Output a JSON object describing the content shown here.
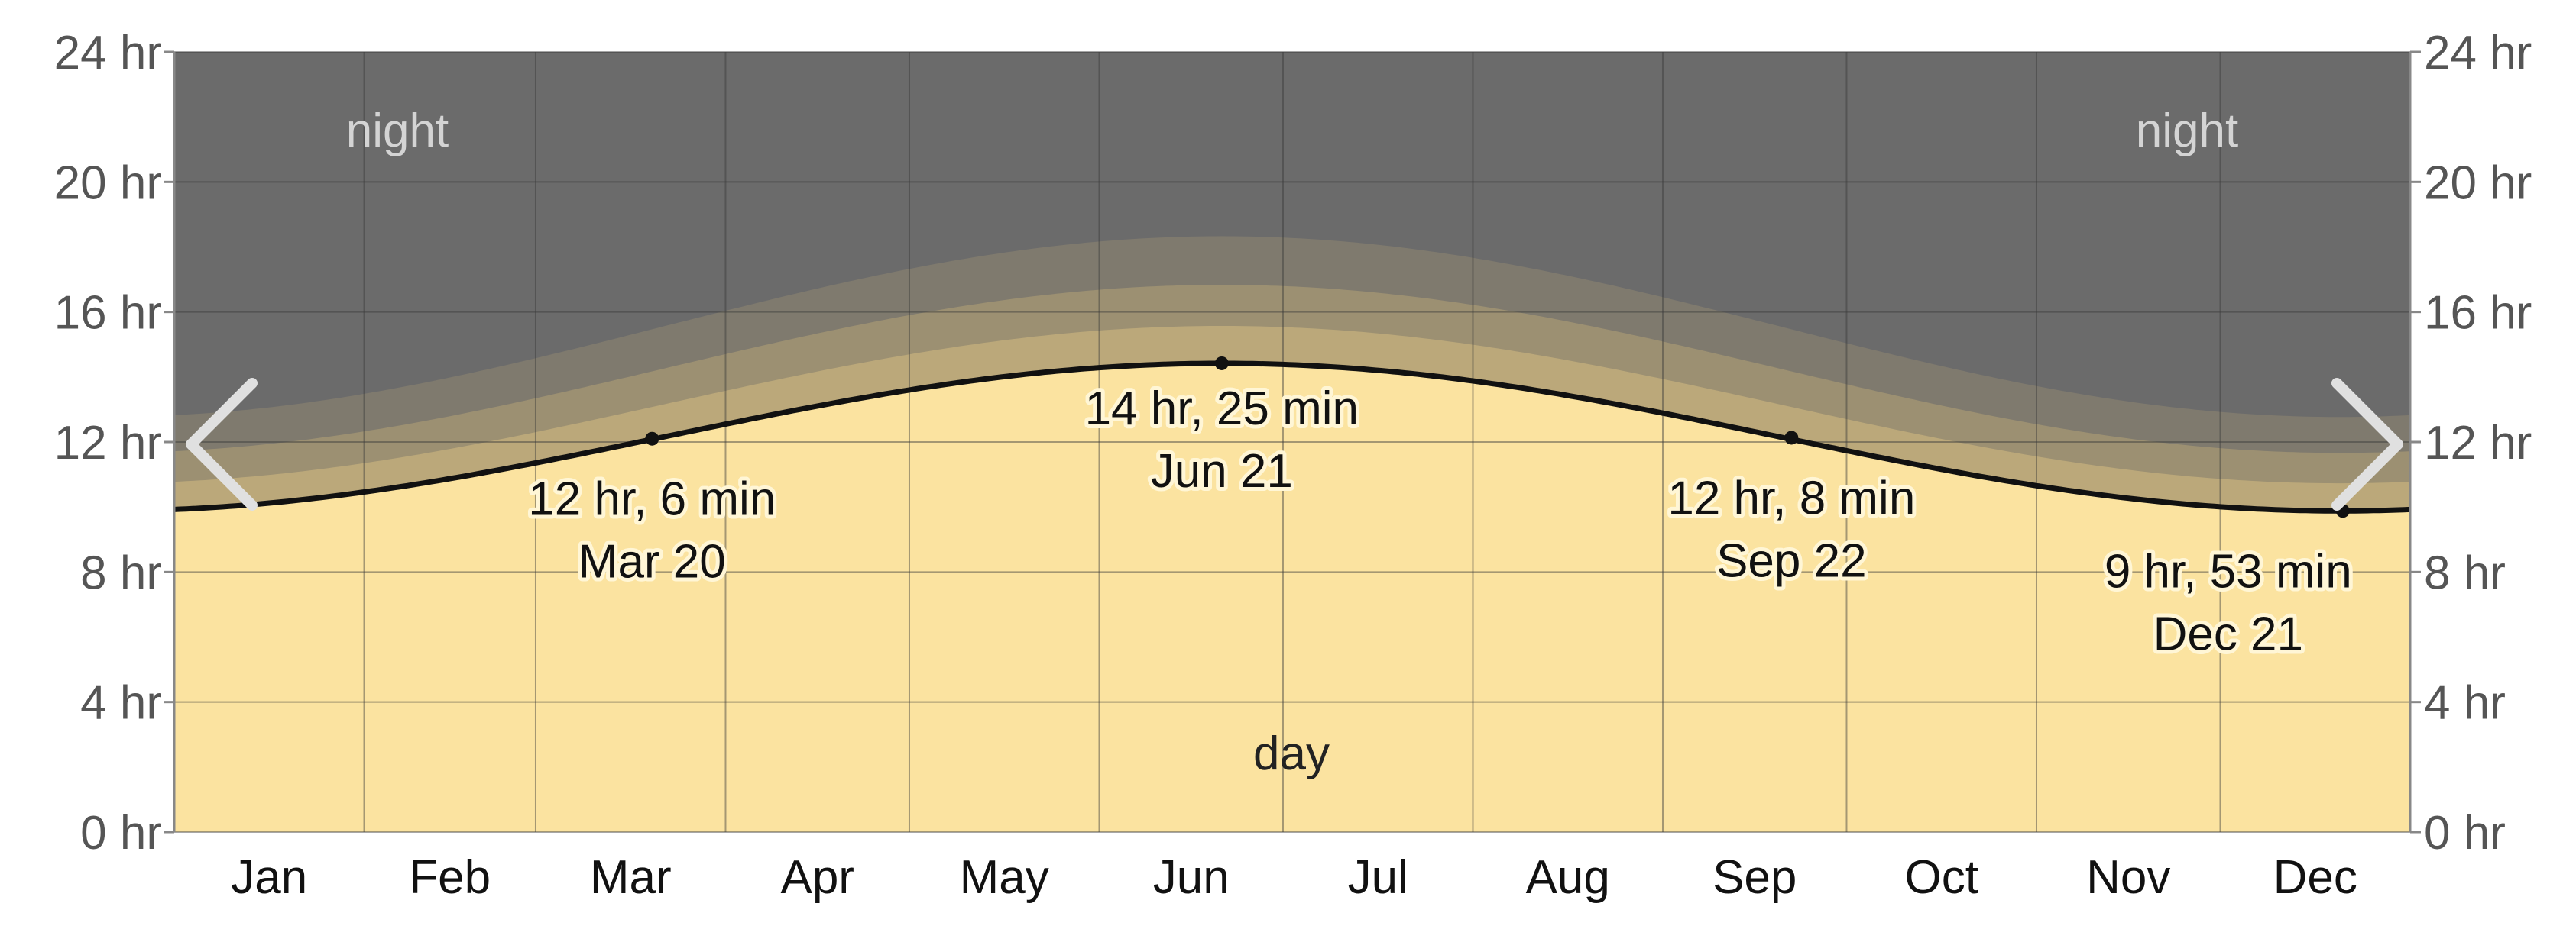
{
  "chart_data": {
    "type": "area",
    "title": "",
    "xlabel": "",
    "ylabel": "",
    "ylim": [
      0,
      24
    ],
    "y_ticks_left": [
      "0 hr",
      "4 hr",
      "8 hr",
      "12 hr",
      "16 hr",
      "20 hr",
      "24 hr"
    ],
    "y_ticks_right": [
      "24 hr",
      "20 hr",
      "16 hr",
      "12 hr",
      "8 hr",
      "4 hr",
      "0 hr"
    ],
    "y_tick_values": [
      0,
      4,
      8,
      12,
      16,
      20,
      24
    ],
    "months": [
      "Jan",
      "Feb",
      "Mar",
      "Apr",
      "May",
      "Jun",
      "Jul",
      "Aug",
      "Sep",
      "Oct",
      "Nov",
      "Dec"
    ],
    "grid": true,
    "region_labels": {
      "night": "night",
      "day": "day"
    },
    "daylight_hours": {
      "min": 9.88,
      "max": 14.42,
      "min_date": "Dec 21",
      "max_date": "Jun 21"
    },
    "twilight_bands": [
      {
        "name": "civil",
        "extra_hours": 1.0
      },
      {
        "name": "nautical",
        "extra_hours": 2.1
      },
      {
        "name": "astronomical",
        "extra_hours": 3.4
      }
    ],
    "annotations": [
      {
        "date": "Mar 20",
        "hours": 12.1,
        "value_label": "12 hr, 6 min",
        "date_label": "Mar 20"
      },
      {
        "date": "Jun 21",
        "hours": 14.42,
        "value_label": "14 hr, 25 min",
        "date_label": "Jun 21"
      },
      {
        "date": "Sep 22",
        "hours": 12.13,
        "value_label": "12 hr, 8 min",
        "date_label": "Sep 22"
      },
      {
        "date": "Dec 21",
        "hours": 9.88,
        "value_label": "9 hr, 53 min",
        "date_label": "Dec 21"
      }
    ],
    "colors": {
      "night": "#6b6b6b",
      "astronomical": "#7f7a6e",
      "nautical": "#9c9072",
      "civil": "#bba87a",
      "day": "#fbe3a0",
      "daylight_line": "#111111",
      "grid": "#3a3a3a"
    }
  },
  "navigation": {
    "prev_icon": "chevron-left-icon",
    "next_icon": "chevron-right-icon"
  }
}
